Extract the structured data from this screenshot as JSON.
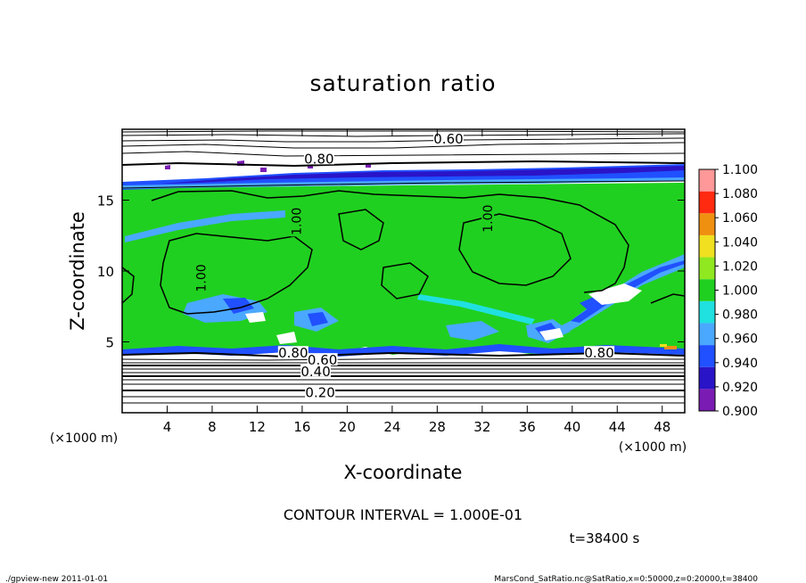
{
  "chart_data": {
    "type": "heatmap",
    "title": "saturation ratio",
    "xlabel": "X-coordinate",
    "ylabel": "Z-coordinate",
    "x_unit": "(×1000 m)",
    "z_unit": "(×1000 m)",
    "xlim": [
      0,
      50
    ],
    "zlim": [
      0,
      20
    ],
    "x_ticks": [
      4,
      8,
      12,
      16,
      20,
      24,
      28,
      32,
      36,
      40,
      44,
      48
    ],
    "z_ticks": [
      5,
      10,
      15
    ],
    "colorbar": {
      "levels": [
        0.9,
        0.92,
        0.94,
        0.96,
        0.98,
        1.0,
        1.02,
        1.04,
        1.06,
        1.08,
        1.1
      ],
      "labels": [
        "0.900",
        "0.920",
        "0.940",
        "0.960",
        "0.980",
        "1.000",
        "1.020",
        "1.040",
        "1.060",
        "1.080",
        "1.100"
      ],
      "colors": [
        "#7a1cb4",
        "#2a14c8",
        "#2050ff",
        "#4aa8ff",
        "#20e0e0",
        "#20d020",
        "#90e820",
        "#f0e020",
        "#f09010",
        "#ff2a10",
        "#ff9898"
      ]
    },
    "contour_labels": [
      {
        "text": "0.60",
        "x": 29,
        "z": 19.3
      },
      {
        "text": "0.80",
        "x": 17.5,
        "z": 17.9
      },
      {
        "text": "1.00",
        "x": 7,
        "z": 9.5
      },
      {
        "text": "1.00",
        "x": 15.5,
        "z": 13.5
      },
      {
        "text": "1.00",
        "x": 32.5,
        "z": 13.7
      },
      {
        "text": "0.80",
        "x": 15.2,
        "z": 4.2
      },
      {
        "text": "0.60",
        "x": 17.8,
        "z": 3.7
      },
      {
        "text": "0.40",
        "x": 17.2,
        "z": 2.9
      },
      {
        "text": "0.20",
        "x": 17.6,
        "z": 1.4
      },
      {
        "text": "0.80",
        "x": 42.4,
        "z": 4.2
      }
    ],
    "contour_interval_text": "CONTOUR INTERVAL = 1.000E-01",
    "time_text": "t=38400 s"
  },
  "footer": {
    "left": "./gpview-new   2011-01-01",
    "right": "MarsCond_SatRatio.nc@SatRatio,x=0:50000,z=0:20000,t=38400"
  },
  "colors": {
    "background": "#ffffff",
    "line": "#000000",
    "green": "#20d020",
    "blue": "#2050ff"
  }
}
